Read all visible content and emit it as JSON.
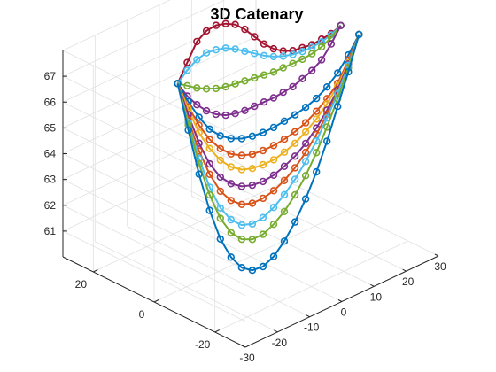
{
  "chart_data": {
    "type": "line",
    "subtype": "3d-line-with-circle-markers",
    "title": "3D Catenary",
    "xlabel": "",
    "ylabel": "",
    "zlabel": "",
    "grid": true,
    "legend": "none",
    "axes": {
      "x": {
        "range": [
          -30,
          30
        ],
        "ticks": [
          -30,
          -20,
          -10,
          0,
          10,
          20,
          30
        ]
      },
      "y": {
        "range": [
          -30,
          30
        ],
        "ticks": [
          -20,
          0,
          20
        ]
      },
      "z": {
        "range": [
          60,
          68
        ],
        "ticks": [
          61,
          62,
          63,
          64,
          65,
          66,
          67
        ]
      }
    },
    "anchors": {
      "left": {
        "x": 0,
        "y": 24,
        "z": 65.3
      },
      "right": {
        "x": 28,
        "y": 0,
        "z": 67.3
      }
    },
    "series": [
      {
        "color": "#A2142F",
        "z": [
          65.3,
          66.1,
          66.9,
          67.3,
          67.5,
          67.55,
          67.5,
          67.3,
          67.0,
          66.7,
          66.5,
          66.4,
          66.4,
          66.5,
          66.6,
          66.8,
          67.0,
          67.3
        ],
        "y_end": 0
      },
      {
        "color": "#4DBEEE",
        "z": [
          65.3,
          65.8,
          66.2,
          66.45,
          66.55,
          66.6,
          66.55,
          66.45,
          66.35,
          66.25,
          66.2,
          66.2,
          66.25,
          66.35,
          66.5,
          66.7,
          66.95,
          67.3
        ],
        "y_end": 0
      },
      {
        "color": "#77AC30",
        "z": [
          65.3,
          65.2,
          65.1,
          65.05,
          65.05,
          65.1,
          65.2,
          65.3,
          65.4,
          65.5,
          65.6,
          65.75,
          65.9,
          66.05,
          66.25,
          66.5,
          66.85,
          67.3
        ],
        "y_end": 0
      },
      {
        "color": "#7E2F8E",
        "z": [
          65.3,
          64.8,
          64.45,
          64.2,
          64.05,
          64.0,
          64.05,
          64.15,
          64.3,
          64.45,
          64.6,
          64.8,
          65.0,
          65.3,
          65.6,
          66.0,
          66.6,
          67.3
        ],
        "y_end": 0
      },
      {
        "color": "#0072BD",
        "z": [
          65.3,
          64.6,
          64.0,
          63.55,
          63.3,
          63.2,
          63.2,
          63.3,
          63.45,
          63.65,
          63.9,
          64.15,
          64.45,
          64.8,
          65.25,
          65.8,
          66.5,
          67.3
        ],
        "y_end": -6
      },
      {
        "color": "#D95319",
        "z": [
          65.3,
          64.4,
          63.7,
          63.15,
          62.8,
          62.6,
          62.55,
          62.6,
          62.75,
          62.95,
          63.2,
          63.5,
          63.85,
          64.3,
          64.8,
          65.4,
          66.3,
          67.3
        ],
        "y_end": -6
      },
      {
        "color": "#EDB120",
        "z": [
          65.3,
          64.3,
          63.4,
          62.8,
          62.35,
          62.1,
          62.0,
          62.05,
          62.2,
          62.4,
          62.7,
          63.05,
          63.5,
          64.0,
          64.6,
          65.3,
          66.2,
          67.3
        ],
        "y_end": -6
      },
      {
        "color": "#7E2F8E",
        "z": [
          65.3,
          64.1,
          63.0,
          62.2,
          61.7,
          61.45,
          61.35,
          61.4,
          61.55,
          61.8,
          62.15,
          62.55,
          63.05,
          63.65,
          64.35,
          65.15,
          66.15,
          67.3
        ],
        "y_end": -6
      },
      {
        "color": "#D95319",
        "z": [
          65.3,
          63.9,
          62.7,
          61.8,
          61.15,
          60.8,
          60.65,
          60.7,
          60.9,
          61.2,
          61.6,
          62.1,
          62.7,
          63.4,
          64.2,
          65.05,
          66.1,
          67.3
        ],
        "y_end": -6
      },
      {
        "color": "#4DBEEE",
        "z": [
          65.3,
          63.8,
          62.4,
          61.3,
          60.5,
          60.05,
          59.85,
          59.9,
          60.15,
          60.55,
          61.05,
          61.65,
          62.35,
          63.15,
          64.05,
          65.0,
          66.1,
          67.3
        ],
        "y_end": -6
      },
      {
        "color": "#77AC30",
        "z": [
          65.3,
          63.7,
          62.2,
          61.0,
          60.1,
          59.55,
          59.3,
          59.3,
          59.5,
          59.9,
          60.4,
          61.05,
          61.8,
          62.7,
          63.7,
          64.8,
          66.0,
          67.3
        ],
        "y_end": -6
      },
      {
        "color": "#0072BD",
        "z": [
          65.3,
          63.5,
          61.8,
          60.4,
          59.3,
          58.6,
          58.2,
          58.1,
          58.25,
          58.65,
          59.25,
          60.0,
          60.9,
          61.95,
          63.15,
          64.5,
          65.85,
          67.3
        ],
        "y_end": -6
      }
    ]
  }
}
